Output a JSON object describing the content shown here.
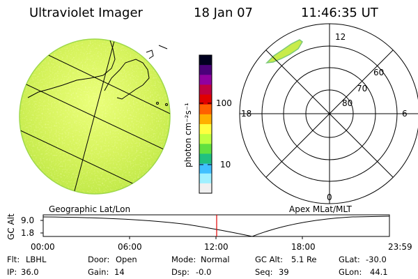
{
  "header": {
    "title": "Ultraviolet Imager",
    "date": "18 Jan 07",
    "time": "11:46:35 UT"
  },
  "colorbar": {
    "unit_label": "photon cm⁻²s⁻¹",
    "tick_labels": [
      "100",
      "10"
    ],
    "colors": [
      "#000020",
      "#4a007a",
      "#9000a0",
      "#c00040",
      "#e00000",
      "#ff6000",
      "#ffb000",
      "#ffff40",
      "#c0ff40",
      "#60e040",
      "#20c080",
      "#40c0ff",
      "#a0f0ff",
      "#f0f0f0"
    ]
  },
  "geo_panel": {
    "caption": "Geographic Lat/Lon"
  },
  "polar_panel": {
    "caption": "Apex MLat/MLT",
    "mlt_labels": {
      "top": "12",
      "left": "18",
      "right": "6",
      "bottom": "0"
    },
    "lat_labels": [
      "60",
      "70",
      "80"
    ]
  },
  "timeline": {
    "y_label": "GC Alt",
    "y_ticks": [
      "9.0",
      "1.8"
    ],
    "x_ticks": [
      "00:00",
      "06:00",
      "12:00",
      "18:00",
      "23:59"
    ],
    "current_time_color": "#e00000"
  },
  "status": {
    "flt_label": "Flt:",
    "flt_value": "LBHL",
    "ip_label": "IP:",
    "ip_value": "36.0",
    "door_label": "Door:",
    "door_value": "Open",
    "gain_label": "Gain:",
    "gain_value": "14",
    "mode_label": "Mode:",
    "mode_value": "Normal",
    "dsp_label": "Dsp:",
    "dsp_value": "-0.0",
    "gcalt_label": "GC Alt:",
    "gcalt_value": "5.1 Re",
    "seq_label": "Seq:",
    "seq_value": "39",
    "glat_label": "GLat:",
    "glat_value": "-30.0",
    "glon_label": "GLon:",
    "glon_value": "44.1"
  }
}
